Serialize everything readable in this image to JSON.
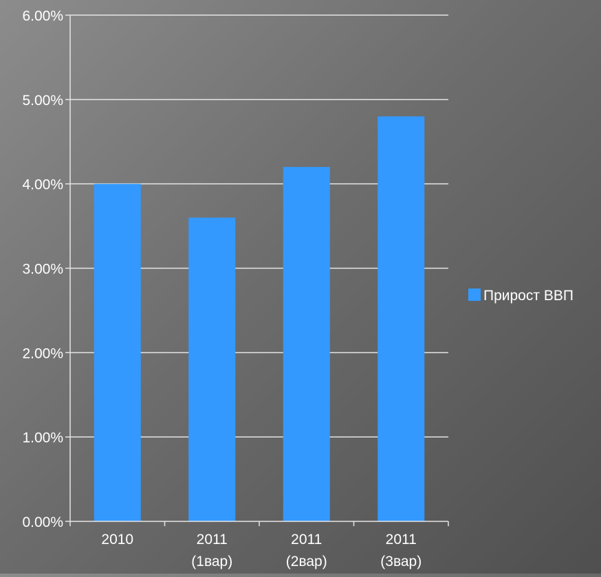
{
  "chart_data": {
    "type": "bar",
    "categories": [
      [
        "2010"
      ],
      [
        "2011",
        "(1вар)"
      ],
      [
        "2011",
        "(2вар)"
      ],
      [
        "2011",
        "(3вар)"
      ]
    ],
    "series": [
      {
        "name": "Прирост ВВП",
        "values": [
          0.04,
          0.036,
          0.042,
          0.048
        ],
        "color": "#3399ff"
      }
    ],
    "ylim": [
      0,
      0.06
    ],
    "yticks": [
      0,
      0.01,
      0.02,
      0.03,
      0.04,
      0.05,
      0.06
    ],
    "ytick_labels": [
      "0.00%",
      "1.00%",
      "2.00%",
      "3.00%",
      "4.00%",
      "5.00%",
      "6.00%"
    ],
    "grid": true,
    "legend_position": "right",
    "title": "",
    "xlabel": "",
    "ylabel": ""
  }
}
